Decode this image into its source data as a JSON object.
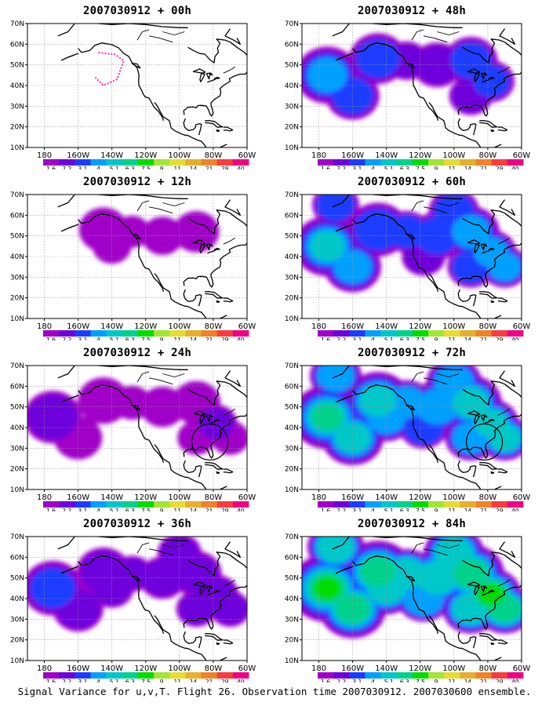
{
  "figure": {
    "caption": "Signal Variance for u,v,T. Flight 26. Observation time 2007030912. 2007030600 ensemble."
  },
  "axes": {
    "lat_labels": [
      "70N",
      "60N",
      "50N",
      "40N",
      "30N",
      "20N",
      "10N"
    ],
    "lon_labels": [
      "180",
      "160W",
      "140W",
      "120W",
      "100W",
      "80W",
      "60W"
    ]
  },
  "colorbar": {
    "labels": [
      "1.6",
      "2.2",
      "3.1",
      "4",
      "5.1",
      "6.3",
      "7.5",
      "9",
      "11",
      "14",
      "21",
      "29",
      "40"
    ],
    "colors": [
      "#a000c8",
      "#6e00dc",
      "#1e3cff",
      "#00a0ff",
      "#00c8c8",
      "#00d28c",
      "#00dc00",
      "#a0e632",
      "#e6dc32",
      "#e6af2d",
      "#f08228",
      "#fa3c3c",
      "#f00082"
    ]
  },
  "panels": [
    {
      "title": "2007030912 + 00h",
      "intensity": 0.6,
      "circle": false
    },
    {
      "title": "2007030912 + 48h",
      "intensity": 2.6,
      "circle": false
    },
    {
      "title": "2007030912 + 12h",
      "intensity": 1.0,
      "circle": false
    },
    {
      "title": "2007030912 + 60h",
      "intensity": 3.3,
      "circle": false
    },
    {
      "title": "2007030912 + 24h",
      "intensity": 1.5,
      "circle": true
    },
    {
      "title": "2007030912 + 72h",
      "intensity": 4.2,
      "circle": true
    },
    {
      "title": "2007030912 + 36h",
      "intensity": 2.0,
      "circle": false
    },
    {
      "title": "2007030912 + 84h",
      "intensity": 5.2,
      "circle": false
    }
  ]
}
